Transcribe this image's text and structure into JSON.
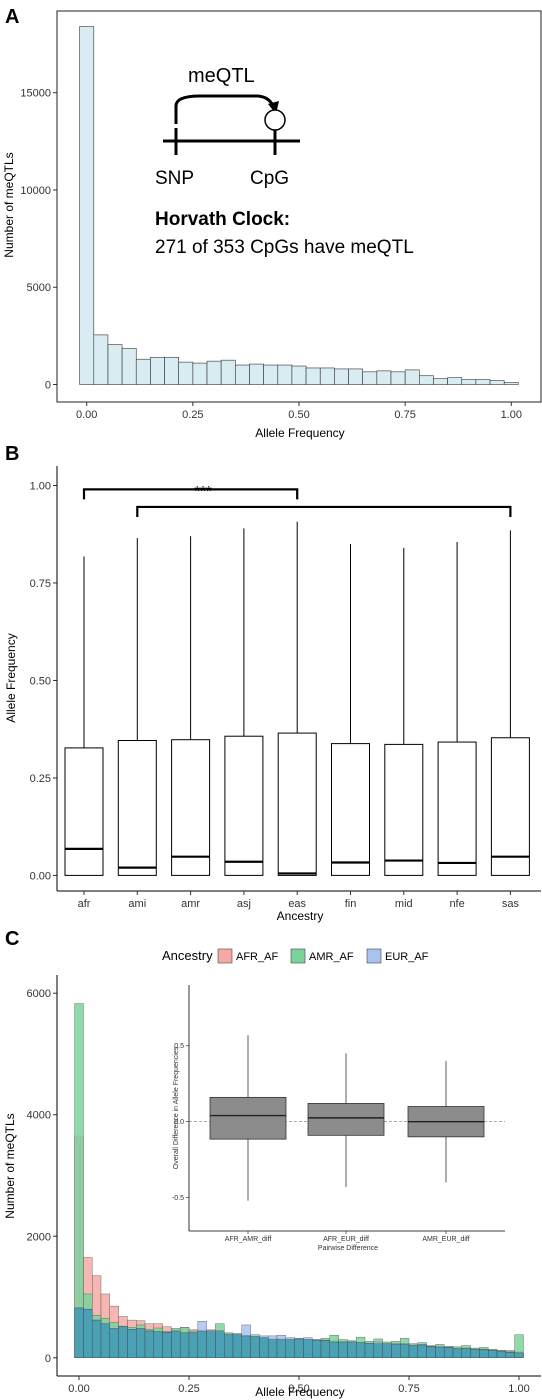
{
  "panels": {
    "a": "A",
    "b": "B",
    "c": "C"
  },
  "colors": {
    "hist_a_fill": "#d8ecf2",
    "afr": "#f4a9a5",
    "amr": "#7ad39a",
    "eur": "#a9c3f0",
    "overlap": "#4aa0b4",
    "inset_box": "#8c8c8c"
  },
  "panel_a": {
    "inset": {
      "edge_label": "meQTL",
      "snp_label": "SNP",
      "cpg_label": "CpG",
      "clock_title": "Horvath Clock:",
      "clock_text": "271 of 353 CpGs have meQTL"
    },
    "chart_data": {
      "type": "histogram",
      "xlabel": "Allele Frequency",
      "ylabel": "Number of meQTLs",
      "xlim": [
        -0.07,
        1.07
      ],
      "ylim": [
        -900,
        19200
      ],
      "xticks": [
        0.0,
        0.25,
        0.5,
        0.75,
        1.0
      ],
      "xtick_labels": [
        "0.00",
        "0.25",
        "0.50",
        "0.75",
        "1.00"
      ],
      "yticks": [
        0,
        5000,
        10000,
        15000
      ],
      "ytick_labels": [
        "0",
        "5000",
        "10000",
        "15000"
      ],
      "bin_width": 0.0333,
      "bin_centers": [
        0.0,
        0.0333,
        0.0667,
        0.1,
        0.1333,
        0.1667,
        0.2,
        0.2333,
        0.2667,
        0.3,
        0.3333,
        0.3667,
        0.4,
        0.4333,
        0.4667,
        0.5,
        0.5333,
        0.5667,
        0.6,
        0.6333,
        0.6667,
        0.7,
        0.7333,
        0.7667,
        0.8,
        0.8333,
        0.8667,
        0.9,
        0.9333,
        0.9667,
        1.0
      ],
      "counts": [
        18400,
        2550,
        2050,
        1850,
        1300,
        1400,
        1400,
        1150,
        1100,
        1200,
        1250,
        1000,
        1050,
        1000,
        1000,
        950,
        850,
        850,
        800,
        800,
        650,
        700,
        650,
        750,
        450,
        300,
        350,
        250,
        250,
        200,
        100
      ]
    }
  },
  "panel_b": {
    "significance": "***",
    "chart_data": {
      "type": "box",
      "xlabel": "Ancestry",
      "ylabel": "Allele Frequency",
      "ylim": [
        -0.04,
        1.05
      ],
      "yticks": [
        0.0,
        0.25,
        0.5,
        0.75,
        1.0
      ],
      "ytick_labels": [
        "0.00",
        "0.25",
        "0.50",
        "0.75",
        "1.00"
      ],
      "categories": [
        "afr",
        "ami",
        "amr",
        "asj",
        "eas",
        "fin",
        "mid",
        "nfe",
        "sas"
      ],
      "q1": [
        0.0,
        0.0,
        0.0,
        0.0,
        0.0,
        0.0,
        0.0,
        0.0,
        0.0
      ],
      "median": [
        0.068,
        0.02,
        0.048,
        0.035,
        0.005,
        0.033,
        0.038,
        0.032,
        0.048
      ],
      "q3": [
        0.327,
        0.346,
        0.348,
        0.357,
        0.365,
        0.338,
        0.336,
        0.342,
        0.353
      ],
      "whisker_low": [
        0.0,
        0.0,
        0.0,
        0.0,
        0.0,
        0.0,
        0.0,
        0.0,
        0.0
      ],
      "whisker_high": [
        0.818,
        0.865,
        0.87,
        0.89,
        0.907,
        0.85,
        0.84,
        0.855,
        0.885
      ],
      "brackets": [
        {
          "from": "afr",
          "to": "eas",
          "y": 0.99
        },
        {
          "from": "ami",
          "to": "sas",
          "y": 0.945
        }
      ]
    }
  },
  "panel_c": {
    "legend_title": "Ancestry",
    "chart_data": [
      {
        "type": "histogram",
        "xlabel": "Allele Frequency",
        "ylabel": "Number of meQTLs",
        "xlim": [
          -0.05,
          1.05
        ],
        "ylim": [
          -300,
          6300
        ],
        "xticks": [
          0.0,
          0.25,
          0.5,
          0.75,
          1.0
        ],
        "xtick_labels": [
          "0.00",
          "0.25",
          "0.50",
          "0.75",
          "1.00"
        ],
        "yticks": [
          0,
          2000,
          4000,
          6000
        ],
        "ytick_labels": [
          "0",
          "2000",
          "4000",
          "6000"
        ],
        "bin_width": 0.02,
        "bin_centers": [
          0.0,
          0.02,
          0.04,
          0.06,
          0.08,
          0.1,
          0.12,
          0.14,
          0.16,
          0.18,
          0.2,
          0.22,
          0.24,
          0.26,
          0.28,
          0.3,
          0.32,
          0.34,
          0.36,
          0.38,
          0.4,
          0.42,
          0.44,
          0.46,
          0.48,
          0.5,
          0.52,
          0.54,
          0.56,
          0.58,
          0.6,
          0.62,
          0.64,
          0.66,
          0.68,
          0.7,
          0.72,
          0.74,
          0.76,
          0.78,
          0.8,
          0.82,
          0.84,
          0.86,
          0.88,
          0.9,
          0.92,
          0.94,
          0.96,
          0.98,
          1.0
        ],
        "series": [
          {
            "name": "AFR_AF",
            "values": [
              3650,
              1650,
              1350,
              1050,
              850,
              680,
              620,
              610,
              560,
              560,
              510,
              480,
              500,
              460,
              460,
              460,
              430,
              400,
              380,
              360,
              350,
              330,
              300,
              320,
              310,
              310,
              300,
              290,
              280,
              280,
              260,
              260,
              250,
              240,
              230,
              230,
              220,
              220,
              200,
              210,
              180,
              170,
              170,
              160,
              150,
              150,
              130,
              130,
              120,
              120,
              100
            ]
          },
          {
            "name": "AMR_AF",
            "values": [
              5830,
              1050,
              700,
              650,
              580,
              520,
              500,
              540,
              470,
              490,
              430,
              480,
              500,
              440,
              440,
              430,
              560,
              410,
              390,
              370,
              360,
              340,
              320,
              300,
              300,
              310,
              310,
              300,
              320,
              370,
              300,
              280,
              340,
              270,
              310,
              260,
              270,
              320,
              230,
              250,
              200,
              220,
              190,
              180,
              200,
              160,
              170,
              140,
              120,
              100,
              380
            ]
          },
          {
            "name": "EUR_AF",
            "values": [
              820,
              800,
              620,
              560,
              480,
              520,
              470,
              480,
              440,
              430,
              420,
              440,
              410,
              410,
              600,
              450,
              450,
              380,
              400,
              540,
              380,
              360,
              360,
              370,
              330,
              320,
              330,
              300,
              290,
              260,
              260,
              260,
              250,
              240,
              260,
              230,
              230,
              230,
              210,
              220,
              190,
              190,
              170,
              150,
              160,
              140,
              140,
              120,
              110,
              90,
              80
            ]
          }
        ]
      },
      {
        "type": "box",
        "xlabel": "Pairwise Difference",
        "ylabel": "Overall Difference in Allele Frequencies",
        "ylim": [
          -0.72,
          0.9
        ],
        "yticks": [
          -0.5,
          0.0,
          0.5
        ],
        "ytick_labels": [
          "-0.5",
          "0.0",
          "0.5"
        ],
        "reference_line": 0.0,
        "categories": [
          "AFR_AMR_diff",
          "AFR_EUR_diff",
          "AMR_EUR_diff"
        ],
        "q1": [
          -0.115,
          -0.09,
          -0.1
        ],
        "median": [
          0.04,
          0.025,
          0.0
        ],
        "q3": [
          0.16,
          0.12,
          0.1
        ],
        "whisker_low": [
          -0.52,
          -0.43,
          -0.4
        ],
        "whisker_high": [
          0.57,
          0.45,
          0.4
        ]
      }
    ]
  }
}
